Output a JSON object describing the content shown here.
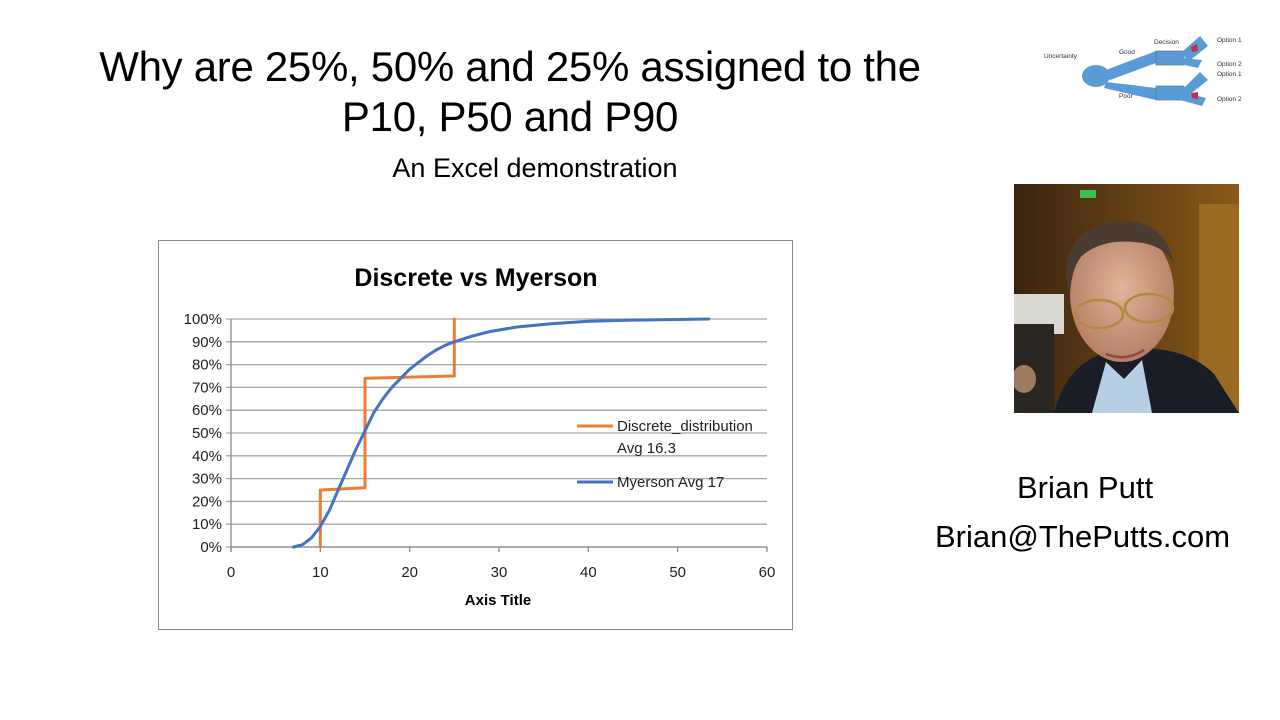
{
  "slide": {
    "title_line1": "Why are 25%, 50% and 25% assigned to the",
    "title_line2": "P10, P50 and P90",
    "subtitle": "An Excel demonstration",
    "author_name": "Brian Putt",
    "author_email": "Brian@ThePutts.com"
  },
  "decision_tree": {
    "icon": "decision-tree-diagram",
    "labels": {
      "uncertainty": "Uncertainty",
      "good": "Good",
      "poor": "Poor",
      "decision": "Decision",
      "top_option1": "Option 1",
      "top_option2": "Option 2",
      "bottom_option1": "Option 1",
      "bottom_option2": "Option 2"
    },
    "colors": {
      "fill": "#5b9bd5",
      "arrow": "#c0304a"
    }
  },
  "photo": {
    "icon": "portrait-photo"
  },
  "chart_data": {
    "type": "line",
    "title": "Discrete vs Myerson",
    "xlabel": "Axis Title",
    "ylabel": "",
    "xlim": [
      0,
      60
    ],
    "ylim": [
      0,
      1
    ],
    "x_ticks": [
      "0",
      "10",
      "20",
      "30",
      "40",
      "50",
      "60"
    ],
    "y_ticks": [
      "0%",
      "10%",
      "20%",
      "30%",
      "40%",
      "50%",
      "60%",
      "70%",
      "80%",
      "90%",
      "100%"
    ],
    "grid": true,
    "legend_position": "right",
    "series": [
      {
        "name": "Discrete_distribution Avg 16.3",
        "legend_line1": "Discrete_distribution",
        "legend_line2": "Avg 16.3",
        "color": "#ed7d31",
        "points": [
          [
            10,
            0
          ],
          [
            10,
            0.25
          ],
          [
            15,
            0.26
          ],
          [
            15,
            0.74
          ],
          [
            25,
            0.75
          ],
          [
            25,
            1.0
          ]
        ]
      },
      {
        "name": "Myerson Avg 17",
        "legend_line1": "Myerson Avg 17",
        "color": "#4472c4",
        "points": [
          [
            7,
            0
          ],
          [
            8,
            0.01
          ],
          [
            9,
            0.04
          ],
          [
            10,
            0.09
          ],
          [
            11,
            0.16
          ],
          [
            12,
            0.25
          ],
          [
            13,
            0.34
          ],
          [
            14,
            0.43
          ],
          [
            15,
            0.51
          ],
          [
            16,
            0.59
          ],
          [
            17,
            0.65
          ],
          [
            18,
            0.7
          ],
          [
            19,
            0.74
          ],
          [
            20,
            0.78
          ],
          [
            21,
            0.81
          ],
          [
            22,
            0.84
          ],
          [
            23,
            0.865
          ],
          [
            24,
            0.885
          ],
          [
            25,
            0.9
          ],
          [
            27,
            0.925
          ],
          [
            29,
            0.945
          ],
          [
            32,
            0.965
          ],
          [
            36,
            0.98
          ],
          [
            40,
            0.99
          ],
          [
            45,
            0.995
          ],
          [
            50,
            0.998
          ],
          [
            53.5,
            1.0
          ]
        ]
      }
    ]
  }
}
